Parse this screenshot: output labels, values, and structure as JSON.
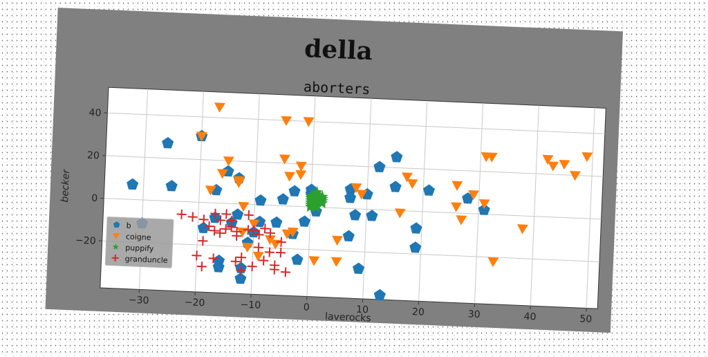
{
  "chart_data": {
    "type": "scatter",
    "title": "della",
    "subtitle": "aborters",
    "xlabel": "laverocks",
    "ylabel": "becker",
    "xlim": [
      -37,
      52
    ],
    "ylim": [
      -42,
      52
    ],
    "xticks": [
      -30,
      -20,
      -10,
      0,
      10,
      20,
      30,
      40,
      50
    ],
    "yticks": [
      -20,
      0,
      20,
      40
    ],
    "xtick_labels": [
      "−30",
      "−20",
      "−10",
      "0",
      "10",
      "20",
      "30",
      "40",
      "50"
    ],
    "ytick_labels": [
      "−20",
      "0",
      "20",
      "40"
    ],
    "grid": true,
    "legend_position": "lower-left",
    "series": [
      {
        "name": "b",
        "marker": "pentagon",
        "color": "#1f77b4",
        "points": [
          [
            -32,
            7
          ],
          [
            -26,
            27
          ],
          [
            -25,
            7
          ],
          [
            -30,
            -11
          ],
          [
            -20,
            31
          ],
          [
            -19,
            -12
          ],
          [
            -17,
            6
          ],
          [
            -17,
            -7
          ],
          [
            -16,
            -27
          ],
          [
            -16,
            -30
          ],
          [
            -15,
            15
          ],
          [
            -14,
            -9
          ],
          [
            -13,
            -5
          ],
          [
            -13,
            12
          ],
          [
            -12,
            -30
          ],
          [
            -12,
            -35
          ],
          [
            -11,
            -18
          ],
          [
            -10,
            -13
          ],
          [
            -9,
            -8
          ],
          [
            -9,
            2
          ],
          [
            -6,
            -8
          ],
          [
            -5,
            3
          ],
          [
            -3,
            7
          ],
          [
            -3,
            -13
          ],
          [
            -2,
            -25
          ],
          [
            -1,
            -7
          ],
          [
            0,
            6
          ],
          [
            0,
            8
          ],
          [
            1,
            -2
          ],
          [
            1,
            4
          ],
          [
            7,
            5
          ],
          [
            7,
            9
          ],
          [
            7,
            -13
          ],
          [
            8,
            -3
          ],
          [
            9,
            -28
          ],
          [
            10,
            7
          ],
          [
            11,
            -3
          ],
          [
            12,
            20
          ],
          [
            13,
            -40
          ],
          [
            15,
            25
          ],
          [
            15,
            11
          ],
          [
            19,
            -8
          ],
          [
            19,
            -17
          ],
          [
            21,
            10
          ],
          [
            28,
            7
          ],
          [
            31,
            2
          ]
        ]
      },
      {
        "name": "coigne",
        "marker": "triangle-down",
        "color": "#ff7f0e",
        "points": [
          [
            -20,
            31
          ],
          [
            -17,
            45
          ],
          [
            -18,
            6
          ],
          [
            -16,
            14
          ],
          [
            -15,
            20
          ],
          [
            -13,
            10
          ],
          [
            -13,
            11
          ],
          [
            -12,
            -1
          ],
          [
            -12,
            -13
          ],
          [
            -11,
            -20
          ],
          [
            -10,
            -9
          ],
          [
            -9,
            -24
          ],
          [
            -7,
            -16
          ],
          [
            -6,
            -18
          ],
          [
            -5,
            22
          ],
          [
            -4,
            14
          ],
          [
            -4,
            -13
          ],
          [
            -3,
            -12
          ],
          [
            -2,
            15
          ],
          [
            -2,
            19
          ],
          [
            -5,
            40
          ],
          [
            -1,
            40
          ],
          [
            1,
            -25
          ],
          [
            5,
            -15
          ],
          [
            5,
            -25
          ],
          [
            8,
            10
          ],
          [
            9,
            7
          ],
          [
            16,
            -1
          ],
          [
            17,
            16
          ],
          [
            18,
            13
          ],
          [
            26,
            13
          ],
          [
            26,
            3
          ],
          [
            27,
            -3
          ],
          [
            29,
            9
          ],
          [
            31,
            5
          ],
          [
            31,
            27
          ],
          [
            32,
            27
          ],
          [
            33,
            -22
          ],
          [
            38,
            -6
          ],
          [
            42,
            27
          ],
          [
            43,
            24
          ],
          [
            45,
            25
          ],
          [
            47,
            20
          ],
          [
            49,
            29
          ]
        ]
      },
      {
        "name": "puppify",
        "marker": "star",
        "color": "#2ca02c",
        "points": [
          [
            0,
            5
          ],
          [
            0,
            4
          ],
          [
            0,
            3
          ],
          [
            0,
            2
          ],
          [
            0,
            1
          ],
          [
            0,
            0
          ],
          [
            1,
            6
          ],
          [
            1,
            5
          ],
          [
            1,
            4
          ],
          [
            1,
            3
          ],
          [
            1,
            2
          ],
          [
            1,
            1
          ],
          [
            1,
            0
          ],
          [
            2,
            5
          ],
          [
            2,
            4
          ],
          [
            2,
            3
          ],
          [
            2,
            2
          ],
          [
            1,
            7
          ]
        ]
      },
      {
        "name": "granduncle",
        "marker": "plus",
        "color": "#d62728",
        "points": [
          [
            -23,
            -6
          ],
          [
            -21,
            -7
          ],
          [
            -19,
            -8
          ],
          [
            -18,
            -11
          ],
          [
            -19,
            -18
          ],
          [
            -20,
            -25
          ],
          [
            -19,
            -30
          ],
          [
            -17,
            -13
          ],
          [
            -17,
            -26
          ],
          [
            -17,
            -5
          ],
          [
            -16,
            -8
          ],
          [
            -15,
            -12
          ],
          [
            -14,
            -11
          ],
          [
            -13,
            -15
          ],
          [
            -13,
            -27
          ],
          [
            -12,
            -25
          ],
          [
            -12,
            -31
          ],
          [
            -11,
            -12
          ],
          [
            -11,
            -5
          ],
          [
            -10,
            -12
          ],
          [
            -10,
            -29
          ],
          [
            -9,
            -14
          ],
          [
            -9,
            -20
          ],
          [
            -8,
            -26
          ],
          [
            -7,
            -22
          ],
          [
            -6,
            -28
          ],
          [
            -6,
            -30
          ],
          [
            -5,
            -22
          ],
          [
            -5,
            -17
          ],
          [
            -4,
            -31
          ],
          [
            -14,
            -8
          ],
          [
            -13,
            -13
          ],
          [
            -15,
            -5
          ],
          [
            -8,
            -11
          ],
          [
            -7,
            -13
          ],
          [
            -16,
            -14
          ]
        ]
      }
    ]
  }
}
